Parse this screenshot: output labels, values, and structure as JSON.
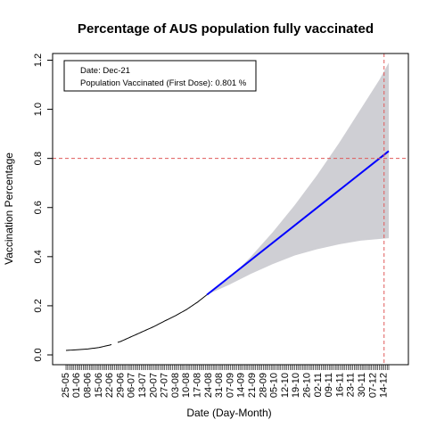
{
  "chart_data": {
    "type": "line",
    "title": "Percentage of AUS population fully vaccinated",
    "xlabel": "Date (Day-Month)",
    "ylabel": "Vaccination Percentage",
    "ylim": [
      0,
      1.2
    ],
    "y_ticks": [
      "0.0",
      "0.2",
      "0.4",
      "0.6",
      "0.8",
      "1.0",
      "1.2"
    ],
    "x_tick_labels": [
      "25-05",
      "01-06",
      "08-06",
      "15-06",
      "22-06",
      "29-06",
      "06-07",
      "13-07",
      "20-07",
      "27-07",
      "03-08",
      "10-08",
      "17-08",
      "24-08",
      "31-08",
      "07-09",
      "14-09",
      "21-09",
      "28-09",
      "05-10",
      "12-10",
      "19-10",
      "26-10",
      "02-11",
      "09-11",
      "16-11",
      "23-11",
      "30-11",
      "07-12",
      "14-12"
    ],
    "target_line": {
      "y": 0.8,
      "color": "#e05a5a"
    },
    "target_date_index": 203,
    "series": [
      {
        "kind": "observed",
        "color": "#000000",
        "points": [
          [
            0,
            0.018
          ],
          [
            7,
            0.021
          ],
          [
            14,
            0.024
          ],
          [
            21,
            0.03
          ],
          [
            28,
            0.04
          ],
          [
            35,
            0.055
          ],
          [
            42,
            0.075
          ],
          [
            49,
            0.095
          ],
          [
            56,
            0.115
          ],
          [
            63,
            0.138
          ],
          [
            70,
            0.16
          ],
          [
            77,
            0.185
          ],
          [
            84,
            0.215
          ],
          [
            90,
            0.245
          ]
        ],
        "gaps": [
          [
            29,
            33
          ]
        ]
      },
      {
        "kind": "forecast",
        "color": "#0000ff",
        "points": [
          [
            90,
            0.245
          ],
          [
            206,
            0.83
          ]
        ]
      }
    ],
    "confidence_band": {
      "color": "#cfcfd4",
      "upper": [
        [
          90,
          0.245
        ],
        [
          104,
          0.31
        ],
        [
          118,
          0.4
        ],
        [
          132,
          0.5
        ],
        [
          146,
          0.61
        ],
        [
          160,
          0.73
        ],
        [
          174,
          0.86
        ],
        [
          188,
          1.0
        ],
        [
          200,
          1.12
        ],
        [
          206,
          1.19
        ]
      ],
      "lower": [
        [
          90,
          0.245
        ],
        [
          104,
          0.285
        ],
        [
          118,
          0.33
        ],
        [
          132,
          0.37
        ],
        [
          146,
          0.405
        ],
        [
          160,
          0.43
        ],
        [
          174,
          0.45
        ],
        [
          188,
          0.465
        ],
        [
          200,
          0.472
        ],
        [
          206,
          0.475
        ]
      ]
    },
    "legend": {
      "placement": "top-left",
      "lines": [
        "Date:  Dec-21",
        "Population Vaccinated (First Dose):  0.801 %"
      ]
    },
    "grid": false
  }
}
